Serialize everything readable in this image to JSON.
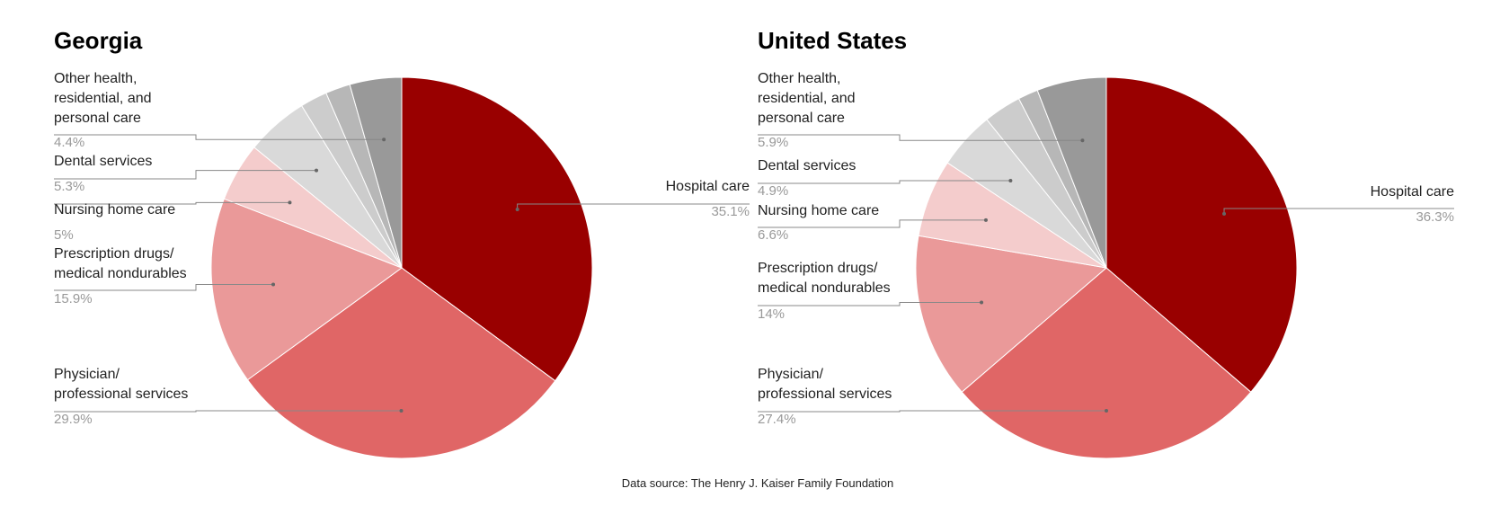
{
  "chart_data": [
    {
      "type": "pie",
      "title": "Georgia",
      "categories": [
        "Hospital care",
        "Physician/\nprofessional services",
        "Prescription drugs/\nmedical nondurables",
        "Nursing home care",
        "Dental services",
        null,
        null,
        "Other health,\nresidential, and\npersonal care"
      ],
      "values": [
        35.1,
        29.9,
        15.9,
        5,
        5.3,
        2.3,
        2.1,
        4.4
      ],
      "value_labels": [
        "35.1%",
        "29.9%",
        "15.9%",
        "5%",
        "5.3%",
        null,
        null,
        "4.4%"
      ],
      "colors": [
        "#990000",
        "#e06666",
        "#ea9999",
        "#f4cccc",
        "#d9d9d9",
        "#cccccc",
        "#b7b7b7",
        "#999999"
      ]
    },
    {
      "type": "pie",
      "title": "United States",
      "categories": [
        "Hospital care",
        "Physician/\nprofessional services",
        "Prescription drugs/\nmedical nondurables",
        "Nursing home care",
        "Dental services",
        null,
        null,
        "Other health,\nresidential, and\npersonal care"
      ],
      "values": [
        36.3,
        27.4,
        14,
        6.6,
        4.9,
        3.2,
        1.7,
        5.9
      ],
      "value_labels": [
        "36.3%",
        "27.4%",
        "14%",
        "6.6%",
        "4.9%",
        null,
        null,
        "5.9%"
      ],
      "colors": [
        "#990000",
        "#e06666",
        "#ea9999",
        "#f4cccc",
        "#d9d9d9",
        "#cccccc",
        "#b7b7b7",
        "#999999"
      ]
    }
  ],
  "footer": "Data source: The Henry J. Kaiser Family Foundation"
}
